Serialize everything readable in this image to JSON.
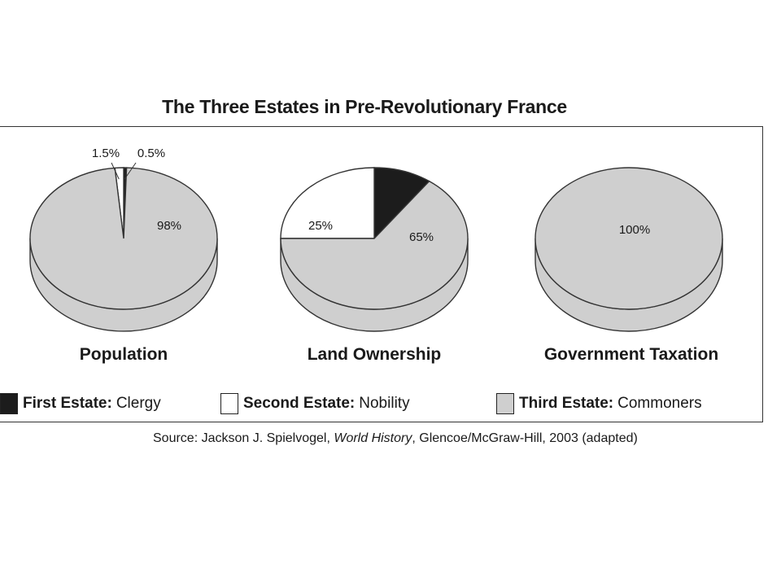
{
  "chart_data": {
    "type": "pie",
    "title": "The Three Estates in Pre-Revolutionary France",
    "legend": [
      {
        "name": "First Estate:",
        "desc": "Clergy",
        "color": "#1c1c1c"
      },
      {
        "name": "Second Estate:",
        "desc": "Nobility",
        "color": "#ffffff"
      },
      {
        "name": "Third Estate:",
        "desc": "Commoners",
        "color": "#cfcfcf"
      }
    ],
    "pies": [
      {
        "label": "Population",
        "values": [
          0.5,
          1.5,
          98
        ],
        "value_labels": [
          "0.5%",
          "1.5%",
          "98%"
        ]
      },
      {
        "label": "Land Ownership",
        "values": [
          10,
          25,
          65
        ],
        "value_labels": [
          "10%",
          "25%",
          "65%"
        ]
      },
      {
        "label": "Government Taxation",
        "values": [
          0,
          0,
          100
        ],
        "value_labels": [
          "",
          "",
          "100%"
        ]
      }
    ]
  },
  "source": {
    "prefix": "Source: Jackson J. Spielvogel, ",
    "work": "World History",
    "suffix": ", Glencoe/McGraw-Hill, 2003 (adapted)"
  },
  "colors": {
    "first": "#1c1c1c",
    "second": "#ffffff",
    "third": "#cfcfcf",
    "stroke": "#333333"
  }
}
